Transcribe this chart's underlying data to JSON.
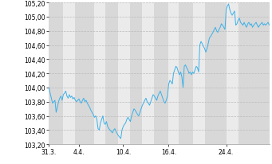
{
  "title": "",
  "ylabel": "",
  "xlabel": "",
  "ylim": [
    103.2,
    105.2
  ],
  "yticks": [
    103.2,
    103.4,
    103.6,
    103.8,
    104.0,
    104.2,
    104.4,
    104.6,
    104.8,
    105.0,
    105.2
  ],
  "xtick_labels": [
    "31.3.",
    "4.4.",
    "10.4.",
    "16.4.",
    "24.4."
  ],
  "line_color": "#3cb0e8",
  "background_color": "#ffffff",
  "plot_bg_color": "#ebebeb",
  "stripe_color": "#d8d8d8",
  "grid_color": "#bbbbbb",
  "values": [
    104.0,
    103.92,
    103.85,
    103.78,
    103.8,
    103.82,
    103.65,
    103.72,
    103.8,
    103.85,
    103.88,
    103.82,
    103.9,
    103.92,
    103.95,
    103.88,
    103.85,
    103.9,
    103.86,
    103.88,
    103.84,
    103.86,
    103.82,
    103.8,
    103.82,
    103.84,
    103.8,
    103.78,
    103.82,
    103.85,
    103.8,
    103.82,
    103.78,
    103.75,
    103.72,
    103.68,
    103.65,
    103.62,
    103.58,
    103.6,
    103.55,
    103.42,
    103.4,
    103.5,
    103.55,
    103.6,
    103.5,
    103.48,
    103.52,
    103.45,
    103.42,
    103.4,
    103.38,
    103.36,
    103.4,
    103.42,
    103.38,
    103.35,
    103.32,
    103.3,
    103.28,
    103.4,
    103.45,
    103.48,
    103.5,
    103.55,
    103.58,
    103.55,
    103.52,
    103.6,
    103.65,
    103.7,
    103.68,
    103.65,
    103.62,
    103.6,
    103.65,
    103.7,
    103.75,
    103.78,
    103.82,
    103.85,
    103.8,
    103.78,
    103.75,
    103.8,
    103.85,
    103.9,
    103.88,
    103.85,
    103.82,
    103.88,
    103.92,
    103.95,
    103.9,
    103.85,
    103.8,
    103.78,
    103.82,
    103.88,
    104.05,
    104.1,
    104.08,
    104.05,
    104.2,
    104.25,
    104.3,
    104.28,
    104.22,
    104.18,
    104.22,
    104.15,
    104.0,
    104.3,
    104.32,
    104.28,
    104.25,
    104.2,
    104.22,
    104.18,
    104.22,
    104.2,
    104.25,
    104.3,
    104.28,
    104.22,
    104.6,
    104.65,
    104.62,
    104.58,
    104.55,
    104.5,
    104.55,
    104.62,
    104.7,
    104.72,
    104.75,
    104.78,
    104.82,
    104.85,
    104.8,
    104.78,
    104.82,
    104.85,
    104.9,
    104.88,
    104.85,
    104.82,
    105.1,
    105.15,
    105.18,
    105.1,
    105.05,
    105.02,
    105.05,
    105.08,
    104.88,
    104.9,
    104.95,
    104.98,
    104.92,
    104.9,
    104.88,
    104.92,
    104.88,
    104.85,
    104.9,
    104.92,
    104.88,
    104.9,
    104.85,
    104.88,
    104.9,
    104.92,
    104.88,
    104.85,
    104.88,
    104.9,
    104.92,
    104.88,
    104.9,
    104.88,
    104.9,
    104.92,
    104.88
  ]
}
